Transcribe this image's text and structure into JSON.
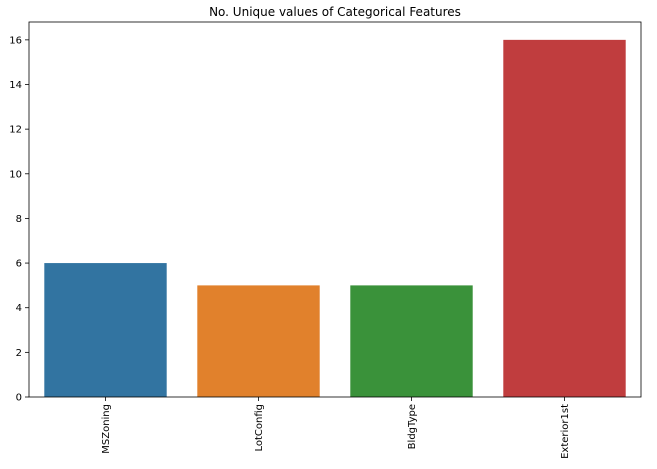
{
  "chart_data": {
    "type": "bar",
    "title": "No. Unique values of Categorical Features",
    "xlabel": "",
    "ylabel": "",
    "categories": [
      "MSZoning",
      "LotConfig",
      "BldgType",
      "Exterior1st"
    ],
    "values": [
      6,
      5,
      5,
      16
    ],
    "colors": [
      "#3274a1",
      "#e1812c",
      "#3a923a",
      "#c03d3e"
    ],
    "ylim": [
      0,
      16.8
    ],
    "yticks": [
      0,
      2,
      4,
      6,
      8,
      10,
      12,
      14,
      16
    ],
    "grid": false,
    "legend": "none",
    "x_tick_rotation": "vertical"
  }
}
